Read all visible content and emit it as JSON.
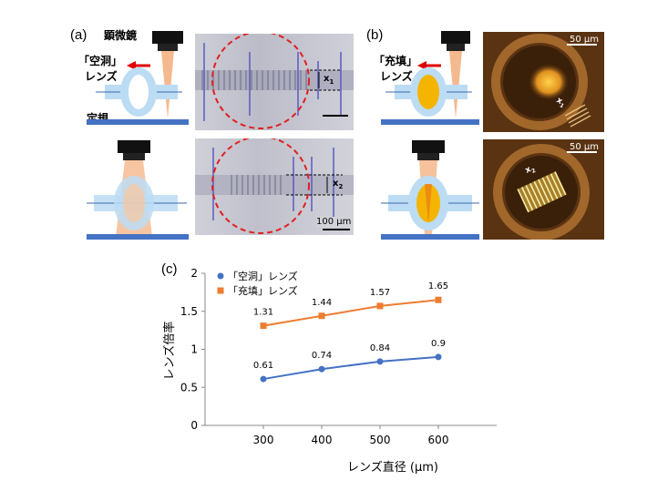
{
  "panels": {
    "a": {
      "letter": "(a)",
      "microscope_label": "顕微鏡",
      "lens_label_line1": "「空洞」",
      "lens_label_line2": "レンズ",
      "ruler_label": "定規",
      "x1_label": "x",
      "x1_sub": "1",
      "x2_label": "x",
      "x2_sub": "2",
      "scale_label": "100 µm"
    },
    "b": {
      "letter": "(b)",
      "lens_label_line1": "「充填」",
      "lens_label_line2": "レンズ",
      "scale_label_top": "50 µm",
      "scale_label_bottom": "50 µm",
      "x1_label": "x",
      "x1_sub": "1",
      "x2_label": "x",
      "x2_sub": "2"
    },
    "c": {
      "letter": "(c)"
    }
  },
  "colors": {
    "lens_blue": "#bcdcf4",
    "ruler_blue": "#4472c4",
    "beam": "#f4b183",
    "fill_orange": "#f5b400",
    "arrow_red": "#e00000",
    "series_hollow": "#4472c4",
    "series_filled": "#ed7d31",
    "dashed_circle": "#e02020"
  },
  "chart_data": {
    "type": "line",
    "xlabel": "レンズ直径 (µm)",
    "ylabel": "レンズ倍率",
    "x": [
      300,
      400,
      500,
      600
    ],
    "xlim": [
      200,
      700
    ],
    "ylim": [
      0,
      2
    ],
    "xticks": [
      "300",
      "400",
      "500",
      "600"
    ],
    "yticks": [
      "0",
      "0.5",
      "1",
      "1.5",
      "2"
    ],
    "legend_position": "top-left",
    "series": [
      {
        "name": "「空洞」レンズ",
        "marker": "circle",
        "color": "#4472c4",
        "values": [
          0.61,
          0.74,
          0.84,
          0.9
        ],
        "labels": [
          "0.61",
          "0.74",
          "0.84",
          "0.9"
        ]
      },
      {
        "name": "「充填」レンズ",
        "marker": "square",
        "color": "#ed7d31",
        "values": [
          1.31,
          1.44,
          1.57,
          1.65
        ],
        "labels": [
          "1.31",
          "1.44",
          "1.57",
          "1.65"
        ]
      }
    ]
  }
}
